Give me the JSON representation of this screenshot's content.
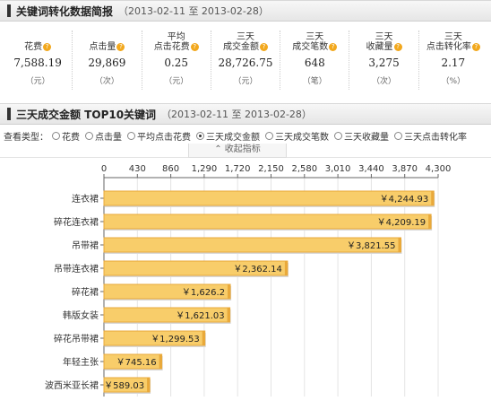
{
  "summary": {
    "title": "关键词转化数据简报",
    "range": "（2013-02-11 至 2013-02-28）",
    "stats": [
      {
        "label": [
          "花费"
        ],
        "value": "7,588.19",
        "unit": "（元）"
      },
      {
        "label": [
          "点击量"
        ],
        "value": "29,869",
        "unit": "（次）"
      },
      {
        "label": [
          "平均",
          "点击花费"
        ],
        "value": "0.25",
        "unit": "（元）"
      },
      {
        "label": [
          "三天",
          "成交金额"
        ],
        "value": "28,726.75",
        "unit": "（元）"
      },
      {
        "label": [
          "三天",
          "成交笔数"
        ],
        "value": "648",
        "unit": "（笔）"
      },
      {
        "label": [
          "三天",
          "收藏量"
        ],
        "value": "3,275",
        "unit": "（次）"
      },
      {
        "label": [
          "三天",
          "点击转化率"
        ],
        "value": "2.17",
        "unit": "（%）"
      }
    ]
  },
  "top10": {
    "title": "三天成交金额 TOP10关键词",
    "range": "（2013-02-11 至 2013-02-28）"
  },
  "filter": {
    "caption": "查看类型：",
    "options": [
      "花费",
      "点击量",
      "平均点击花费",
      "三天成交金额",
      "三天成交笔数",
      "三天收藏量",
      "三天点击转化率"
    ],
    "selected_index": 3
  },
  "collapse_label": "收起指标",
  "colors": {
    "bar_fill": "#f8cd6a",
    "bar_edge": "#e9a93a",
    "icon_orange": "#f2a81d"
  },
  "chart_data": {
    "type": "bar",
    "orientation": "horizontal",
    "categories": [
      "连衣裙",
      "碎花连衣裙",
      "吊带裙",
      "吊带连衣裙",
      "碎花裙",
      "韩版女装",
      "碎花吊带裙",
      "年轻主张",
      "波西米亚长裙"
    ],
    "values": [
      4244.93,
      4209.19,
      3821.55,
      2362.14,
      1626.2,
      1621.03,
      1299.53,
      745.16,
      589.03
    ],
    "value_labels": [
      "￥4,244.93",
      "￥4,209.19",
      "￥3,821.55",
      "￥2,362.14",
      "￥1,626.2",
      "￥1,621.03",
      "￥1,299.53",
      "￥745.16",
      "￥589.03"
    ],
    "x_ticks": [
      0,
      430,
      860,
      1290,
      1720,
      2150,
      2580,
      3010,
      3440,
      3870,
      4300
    ],
    "x_tick_labels": [
      "0",
      "430",
      "860",
      "1,290",
      "1,720",
      "2,150",
      "2,580",
      "3,010",
      "3,440",
      "3,870",
      "4,300"
    ],
    "xlim": [
      0,
      4300
    ],
    "axis_position": "top",
    "grid": true
  }
}
